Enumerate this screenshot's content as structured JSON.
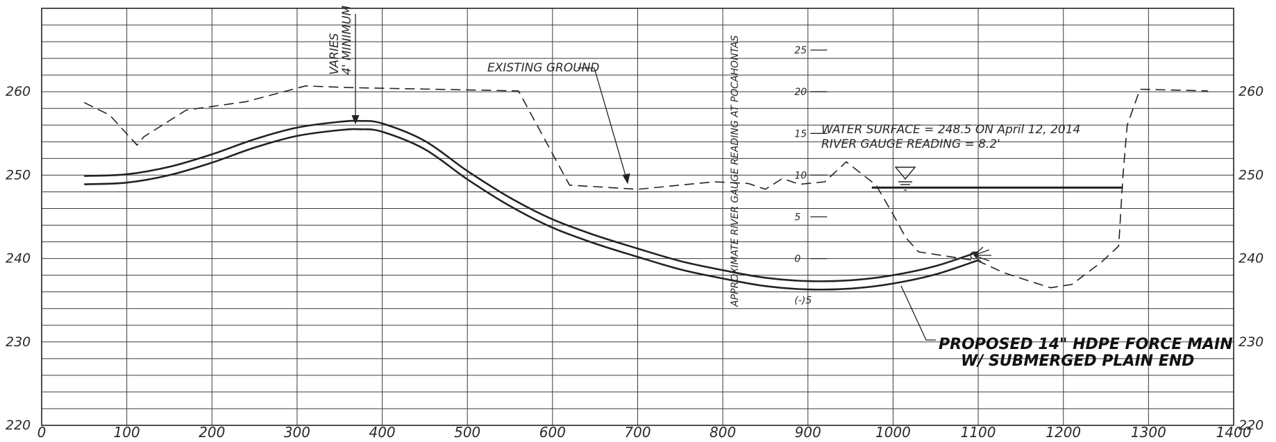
{
  "chart_data": {
    "type": "line",
    "station_axis": {
      "ticks": [
        0,
        100,
        200,
        300,
        400,
        500,
        600,
        700,
        800,
        900,
        1000,
        1100,
        1200,
        1300,
        1400
      ],
      "range": [
        0,
        1400
      ]
    },
    "elevation_axis": {
      "range": [
        220,
        270
      ],
      "left_labels": [
        220,
        230,
        240,
        250,
        260
      ],
      "right_labels": [
        220,
        230,
        240,
        250,
        260
      ],
      "grid_interval": 2
    },
    "gauge_scale": {
      "title": "APPROXIMATE RIVER GAUGE READING AT POCAHONTAS",
      "labels": [
        "25",
        "20",
        "15",
        "10",
        "5",
        "0",
        "(-)5"
      ],
      "values": [
        25,
        20,
        15,
        10,
        5,
        0,
        -5
      ]
    },
    "series": [
      {
        "name": "EXISTING GROUND",
        "style": "dashed",
        "x": [
          50,
          80,
          112,
          120,
          170,
          240,
          310,
          360,
          560,
          620,
          700,
          790,
          830,
          850,
          870,
          890,
          920,
          945,
          980,
          1000,
          1015,
          1030,
          1100,
          1130,
          1160,
          1185,
          1210,
          1245,
          1265,
          1270,
          1275,
          1290,
          1370
        ],
        "y": [
          258.7,
          257.2,
          253.6,
          254.6,
          257.8,
          258.8,
          260.7,
          260.5,
          260.1,
          248.8,
          248.3,
          249.2,
          249.0,
          248.3,
          249.6,
          248.9,
          249.2,
          251.6,
          248.8,
          245.3,
          242.5,
          240.8,
          239.7,
          238.3,
          237.3,
          236.5,
          236.9,
          239.6,
          241.5,
          250.0,
          256.0,
          260.3,
          260.1
        ]
      },
      {
        "name": "PROPOSED 14\" HDPE FORCE MAIN W/ SUBMERGED PLAIN END",
        "style": "double-solid",
        "x": [
          50,
          100,
          150,
          200,
          250,
          300,
          350,
          375,
          400,
          450,
          500,
          550,
          600,
          650,
          700,
          750,
          800,
          850,
          900,
          950,
          1000,
          1050,
          1100
        ],
        "y": [
          249.4,
          249.6,
          250.5,
          252.0,
          253.8,
          255.2,
          255.9,
          256.0,
          255.7,
          253.6,
          250.0,
          246.8,
          244.2,
          242.3,
          240.7,
          239.2,
          238.1,
          237.2,
          236.8,
          236.9,
          237.5,
          238.6,
          240.3
        ]
      }
    ],
    "water_surface": {
      "x_start": 975,
      "x_end": 1270,
      "elevation": 248.5
    }
  },
  "annotations": {
    "varies_note": [
      "VARIES",
      "4' MINIMUM"
    ],
    "existing_ground": "EXISTING GROUND",
    "water_surface_line1": "WATER SURFACE = 248.5 ON April 12, 2014",
    "water_surface_line2": "RIVER GAUGE READING = 8.2'",
    "proposed_line1": "PROPOSED 14\" HDPE FORCE MAIN",
    "proposed_line2": "W/ SUBMERGED PLAIN END"
  }
}
